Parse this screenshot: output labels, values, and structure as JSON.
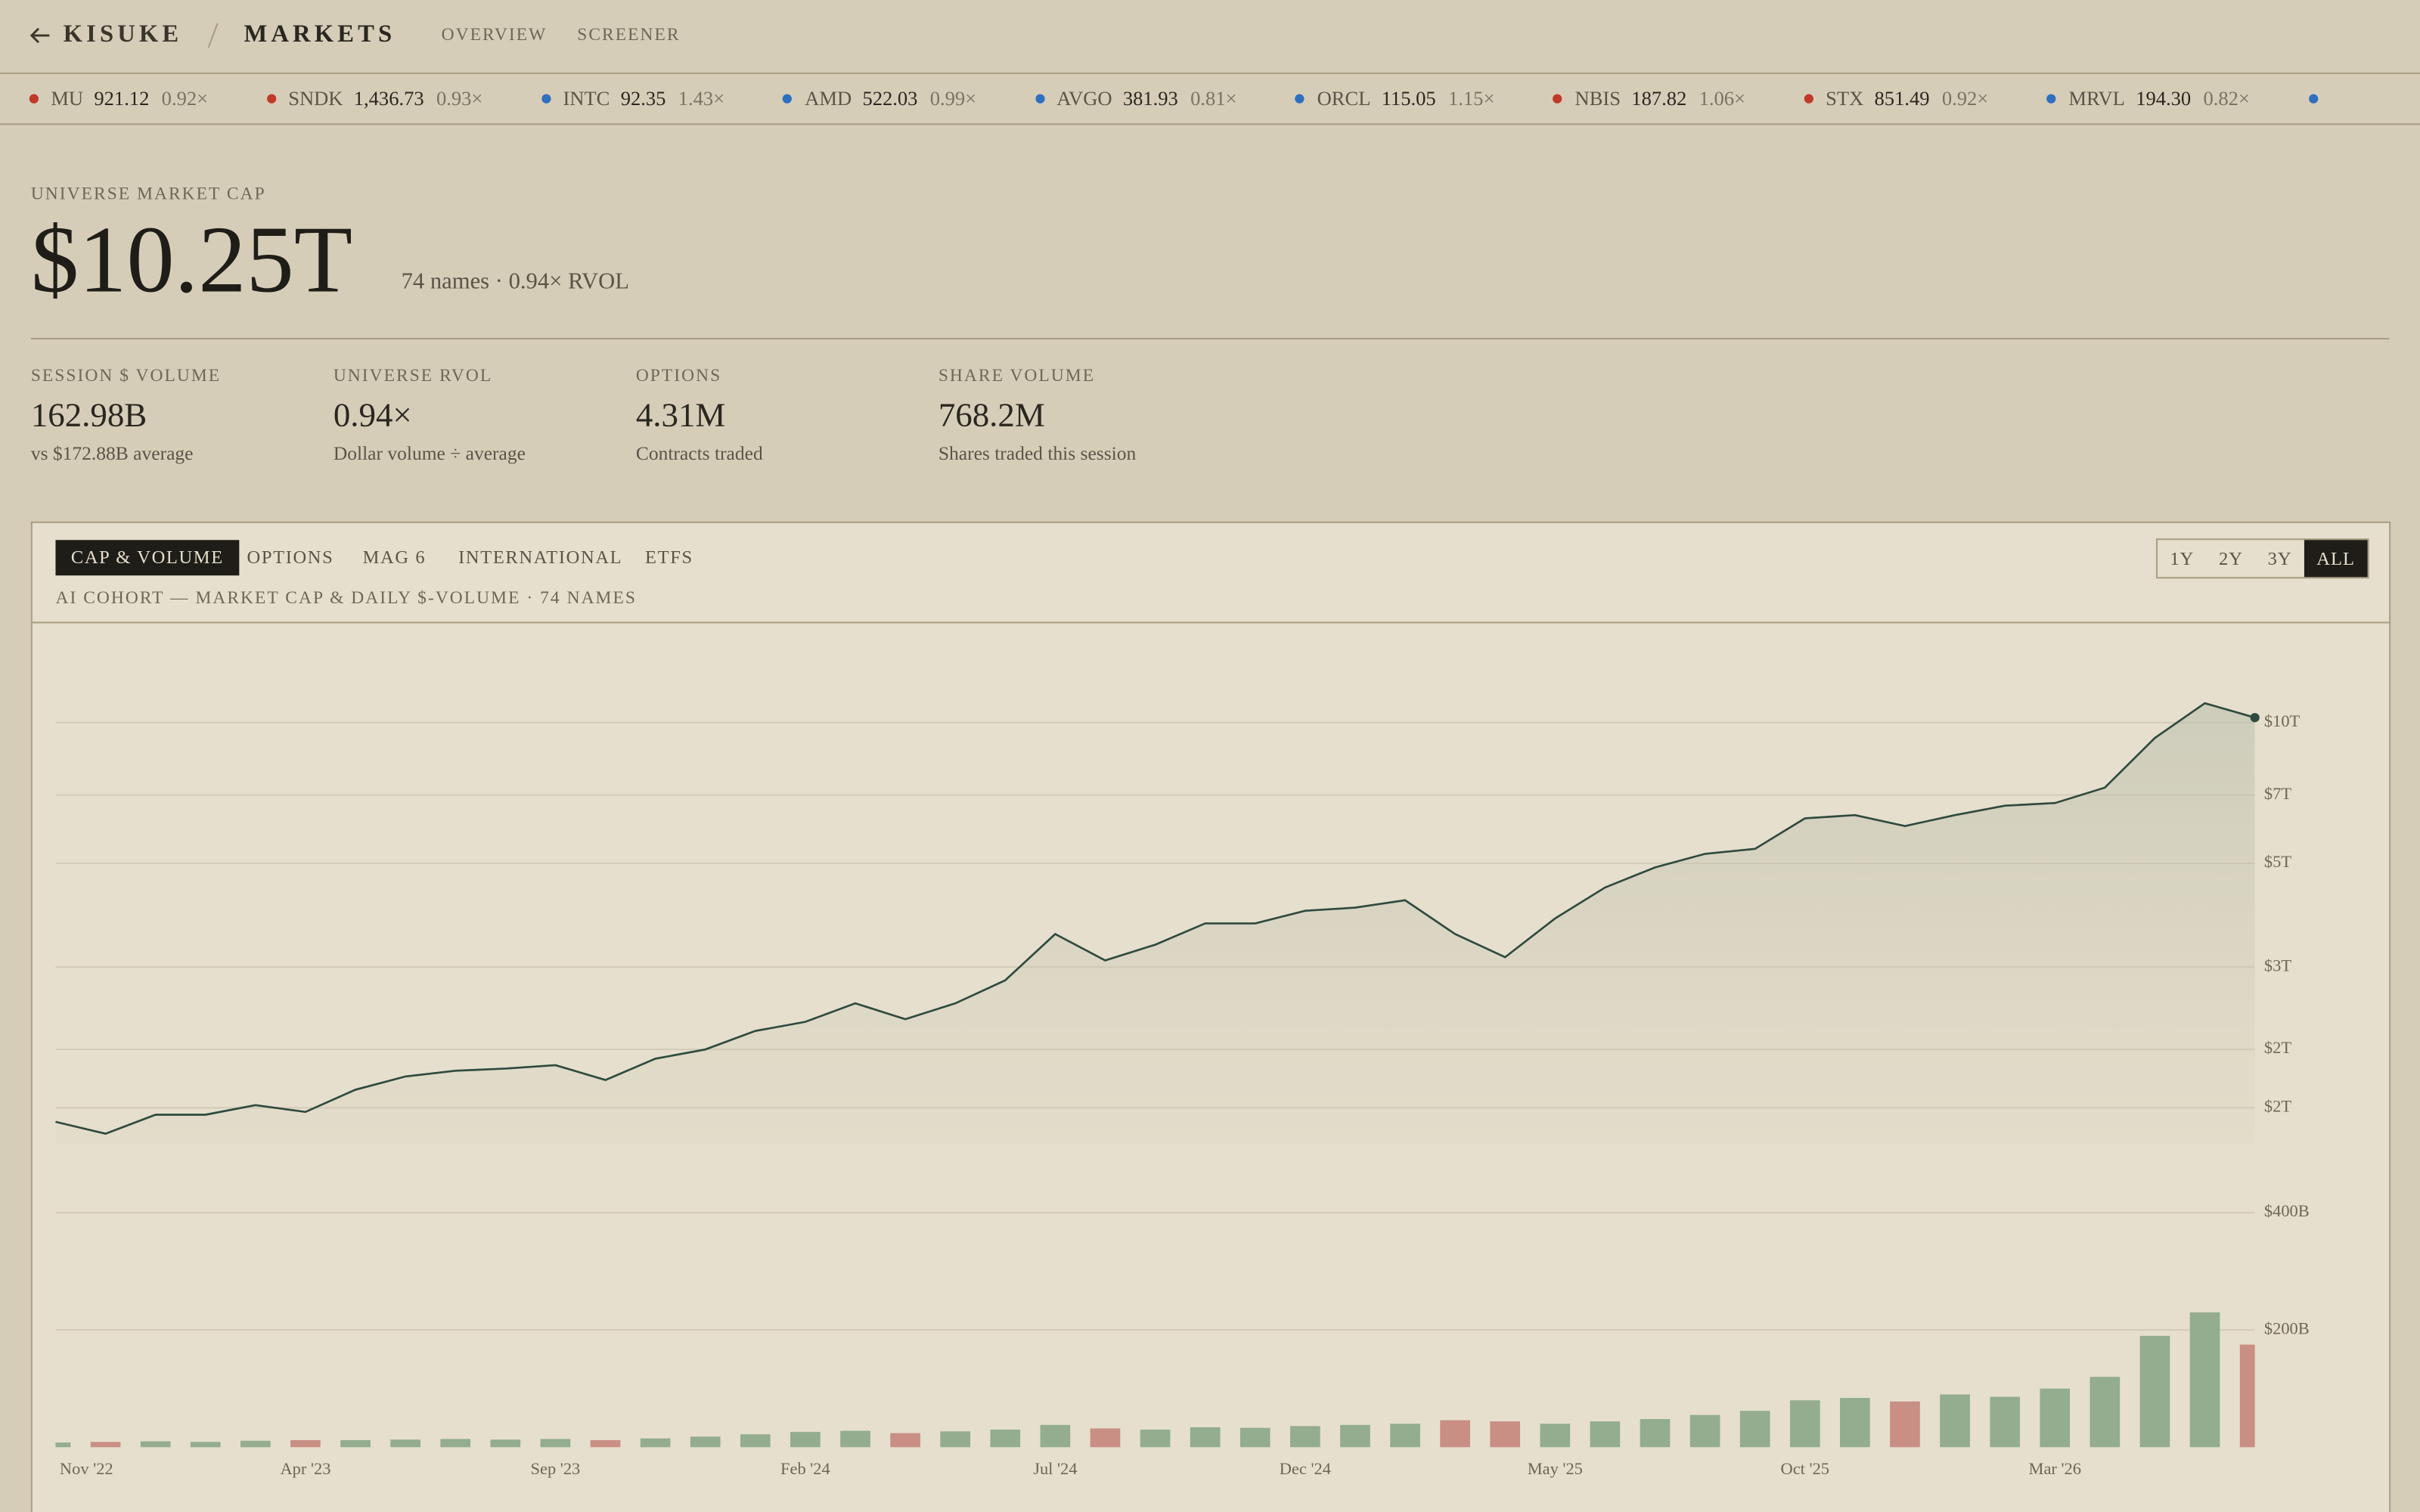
{
  "header": {
    "brand": "KISUKE",
    "section": "MARKETS",
    "nav": [
      "OVERVIEW",
      "SCREENER"
    ]
  },
  "ticker": [
    {
      "symbol": "MU",
      "price": "921.12",
      "rvol": "0.92×",
      "dot": "#c0392b"
    },
    {
      "symbol": "SNDK",
      "price": "1,436.73",
      "rvol": "0.93×",
      "dot": "#c0392b"
    },
    {
      "symbol": "INTC",
      "price": "92.35",
      "rvol": "1.43×",
      "dot": "#2f6fc0"
    },
    {
      "symbol": "AMD",
      "price": "522.03",
      "rvol": "0.99×",
      "dot": "#2f6fc0"
    },
    {
      "symbol": "AVGO",
      "price": "381.93",
      "rvol": "0.81×",
      "dot": "#2f6fc0"
    },
    {
      "symbol": "ORCL",
      "price": "115.05",
      "rvol": "1.15×",
      "dot": "#2f6fc0"
    },
    {
      "symbol": "NBIS",
      "price": "187.82",
      "rvol": "1.06×",
      "dot": "#c0392b"
    },
    {
      "symbol": "STX",
      "price": "851.49",
      "rvol": "0.92×",
      "dot": "#c0392b"
    },
    {
      "symbol": "MRVL",
      "price": "194.30",
      "rvol": "0.82×",
      "dot": "#2f6fc0"
    },
    {
      "dot": "#2f6fc0"
    }
  ],
  "hero": {
    "label": "UNIVERSE MARKET CAP",
    "value": "$10.25T",
    "note": "74 names · 0.94× RVOL"
  },
  "stats": [
    {
      "label": "SESSION $ VOLUME",
      "value": "162.98B",
      "sub": "vs $172.88B average"
    },
    {
      "label": "UNIVERSE RVOL",
      "value": "0.94×",
      "sub": "Dollar volume ÷ average"
    },
    {
      "label": "OPTIONS",
      "value": "4.31M",
      "sub": "Contracts traded"
    },
    {
      "label": "SHARE VOLUME",
      "value": "768.2M",
      "sub": "Shares traded this session"
    }
  ],
  "panel": {
    "tabs": [
      "CAP & VOLUME",
      "OPTIONS",
      "MAG 6",
      "INTERNATIONAL",
      "ETFS"
    ],
    "active_tab": 0,
    "ranges": [
      "1Y",
      "2Y",
      "3Y",
      "ALL"
    ],
    "active_range": 3,
    "subtitle": "AI COHORT — MARKET CAP & DAILY $-VOLUME · 74 NAMES"
  },
  "chart_data": [
    {
      "type": "line",
      "fill": true,
      "log": true,
      "grid": true,
      "color": "#2f4a3e",
      "x": [
        "2022-11",
        "2022-12",
        "2023-01",
        "2023-02",
        "2023-03",
        "2023-04",
        "2023-05",
        "2023-06",
        "2023-07",
        "2023-08",
        "2023-09",
        "2023-10",
        "2023-11",
        "2023-12",
        "2024-01",
        "2024-02",
        "2024-03",
        "2024-04",
        "2024-05",
        "2024-06",
        "2024-07",
        "2024-08",
        "2024-09",
        "2024-10",
        "2024-11",
        "2024-12",
        "2025-01",
        "2025-02",
        "2025-03",
        "2025-04",
        "2025-05",
        "2025-06",
        "2025-07",
        "2025-08",
        "2025-09",
        "2025-10",
        "2025-11",
        "2025-12",
        "2026-01",
        "2026-02",
        "2026-03",
        "2026-04",
        "2026-05",
        "2026-06",
        "2026-07"
      ],
      "values": [
        1.4,
        1.32,
        1.45,
        1.45,
        1.52,
        1.47,
        1.64,
        1.75,
        1.8,
        1.82,
        1.85,
        1.72,
        1.91,
        2.0,
        2.19,
        2.29,
        2.51,
        2.32,
        2.51,
        2.81,
        3.53,
        3.1,
        3.35,
        3.72,
        3.72,
        3.96,
        4.02,
        4.17,
        3.53,
        3.15,
        3.81,
        4.44,
        4.9,
        5.24,
        5.37,
        6.24,
        6.34,
        6.01,
        6.34,
        6.64,
        6.73,
        7.26,
        9.27,
        11.0,
        10.25
      ],
      "ylim": [
        1.25,
        15
      ],
      "yticks": [
        {
          "value": 10,
          "label": "$10T"
        },
        {
          "value": 7,
          "label": "$7T"
        },
        {
          "value": 5,
          "label": "$5T"
        },
        {
          "value": 3,
          "label": "$3T"
        },
        {
          "value": 2,
          "label": "$2T"
        },
        {
          "value": 1.5,
          "label": "$2T"
        }
      ]
    },
    {
      "type": "bar",
      "grid": true,
      "colors": {
        "up": "#93ad8e",
        "down": "#c98e84"
      },
      "x": [
        "2022-11",
        "2022-12",
        "2023-01",
        "2023-02",
        "2023-03",
        "2023-04",
        "2023-05",
        "2023-06",
        "2023-07",
        "2023-08",
        "2023-09",
        "2023-10",
        "2023-11",
        "2023-12",
        "2024-01",
        "2024-02",
        "2024-03",
        "2024-04",
        "2024-05",
        "2024-06",
        "2024-07",
        "2024-08",
        "2024-09",
        "2024-10",
        "2024-11",
        "2024-12",
        "2025-01",
        "2025-02",
        "2025-03",
        "2025-04",
        "2025-05",
        "2025-06",
        "2025-07",
        "2025-08",
        "2025-09",
        "2025-10",
        "2025-11",
        "2025-12",
        "2026-01",
        "2026-02",
        "2026-03",
        "2026-04",
        "2026-05",
        "2026-06",
        "2026-07"
      ],
      "values": [
        8,
        9,
        10,
        9,
        11,
        12,
        12,
        13,
        14,
        13,
        14,
        12,
        15,
        18,
        22,
        26,
        28,
        24,
        27,
        30,
        38,
        32,
        30,
        34,
        33,
        36,
        38,
        40,
        46,
        44,
        40,
        44,
        48,
        55,
        62,
        80,
        84,
        78,
        90,
        86,
        100,
        120,
        190,
        230,
        175
      ],
      "ylim": [
        0,
        470
      ],
      "yticks": [
        {
          "value": 200,
          "label": "$200B"
        },
        {
          "value": 400,
          "label": "$400B"
        }
      ],
      "xticks": [
        {
          "value": "2022-11",
          "label": "Nov '22"
        },
        {
          "value": "2023-04",
          "label": "Apr '23"
        },
        {
          "value": "2023-09",
          "label": "Sep '23"
        },
        {
          "value": "2024-02",
          "label": "Feb '24"
        },
        {
          "value": "2024-07",
          "label": "Jul '24"
        },
        {
          "value": "2024-12",
          "label": "Dec '24"
        },
        {
          "value": "2025-05",
          "label": "May '25"
        },
        {
          "value": "2025-10",
          "label": "Oct '25"
        },
        {
          "value": "2026-03",
          "label": "Mar '26"
        }
      ]
    }
  ]
}
